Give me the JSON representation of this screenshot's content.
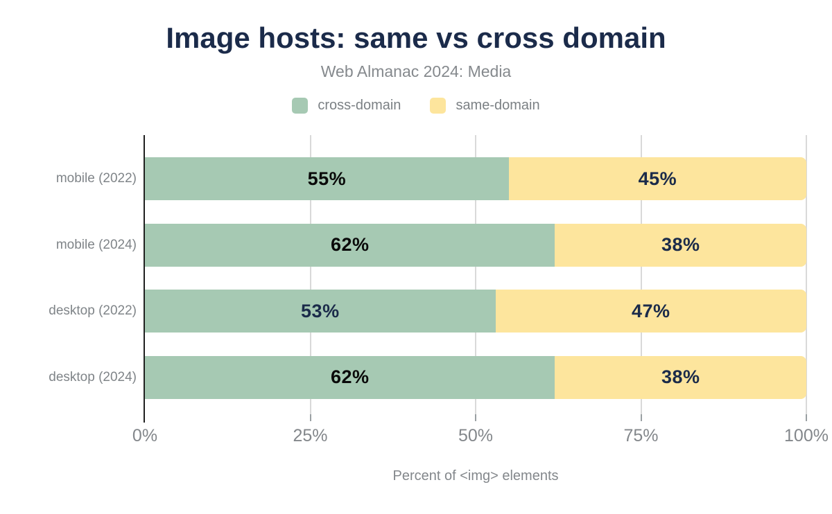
{
  "title": "Image hosts: same vs cross domain",
  "subtitle": "Web Almanac 2024: Media",
  "legend": {
    "items": [
      {
        "label": "cross-domain",
        "color": "#a6c9b3"
      },
      {
        "label": "same-domain",
        "color": "#fde59d"
      }
    ]
  },
  "chart_data": {
    "type": "bar",
    "orientation": "horizontal",
    "stacked": true,
    "title": "Image hosts: same vs cross domain",
    "subtitle": "Web Almanac 2024: Media",
    "categories": [
      "mobile (2022)",
      "mobile (2024)",
      "desktop (2022)",
      "desktop (2024)"
    ],
    "series": [
      {
        "name": "cross-domain",
        "color": "#a6c9b3",
        "values": [
          55,
          62,
          53,
          62
        ],
        "value_labels": [
          "55%",
          "62%",
          "53%",
          "62%"
        ],
        "label_colors": [
          "#0a0a0a",
          "#0a0a0a",
          "#1b2b4a",
          "#0a0a0a"
        ]
      },
      {
        "name": "same-domain",
        "color": "#fde59d",
        "values": [
          45,
          38,
          47,
          38
        ],
        "value_labels": [
          "45%",
          "38%",
          "47%",
          "38%"
        ],
        "label_colors": [
          "#1b2b4a",
          "#1b2b4a",
          "#1b2b4a",
          "#1b2b4a"
        ]
      }
    ],
    "xlim": [
      0,
      100
    ],
    "x_ticks": [
      {
        "value": 0,
        "label": "0%"
      },
      {
        "value": 25,
        "label": "25%"
      },
      {
        "value": 50,
        "label": "50%"
      },
      {
        "value": 75,
        "label": "75%"
      },
      {
        "value": 100,
        "label": "100%"
      }
    ],
    "xlabel": "Percent of <img> elements",
    "grid": "vertical",
    "legend_position": "top"
  },
  "colors": {
    "title": "#1b2b4a",
    "subtitle": "#85898d",
    "category_label": "#7f8488",
    "tick_label": "#83878b",
    "axis_label": "#83878b",
    "gridline": "#d9d9d9",
    "tick_mark": "#9aa0a3",
    "axis_line": "#1f1f1f",
    "background": "#ffffff"
  }
}
